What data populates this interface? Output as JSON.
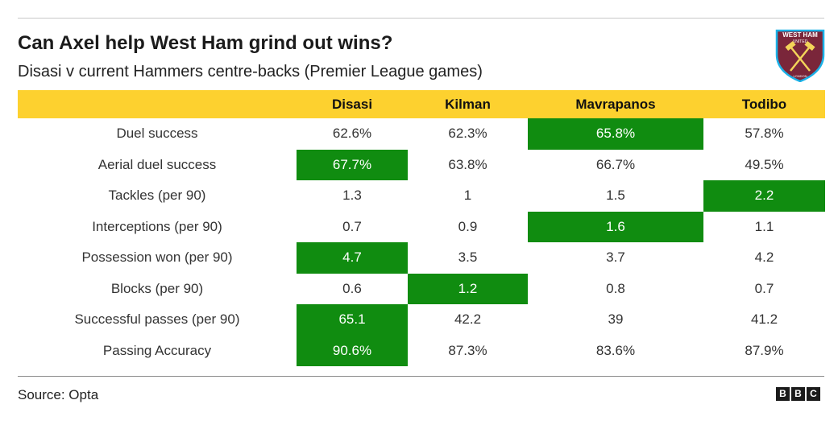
{
  "title": "Can Axel help West Ham grind out wins?",
  "subtitle": "Disasi v current Hammers centre-backs (Premier League games)",
  "crest": {
    "text_top": "WEST HAM",
    "text_mid": "UNITED",
    "text_bottom": "LONDON",
    "colors": {
      "claret": "#7a263a",
      "blue": "#1bb1e7",
      "gold": "#f3d459"
    }
  },
  "colors": {
    "header_bg": "#fdd12f",
    "highlight": "#108c10"
  },
  "chart_data": {
    "type": "table",
    "columns": [
      "",
      "Disasi",
      "Kilman",
      "Mavrapanos",
      "Todibo"
    ],
    "rows": [
      {
        "label": "Duel success",
        "values": [
          "62.6%",
          "62.3%",
          "65.8%",
          "57.8%"
        ],
        "highlight": 2
      },
      {
        "label": "Aerial duel success",
        "values": [
          "67.7%",
          "63.8%",
          "66.7%",
          "49.5%"
        ],
        "highlight": 0
      },
      {
        "label": "Tackles (per 90)",
        "values": [
          "1.3",
          "1",
          "1.5",
          "2.2"
        ],
        "highlight": 3
      },
      {
        "label": "Interceptions (per 90)",
        "values": [
          "0.7",
          "0.9",
          "1.6",
          "1.1"
        ],
        "highlight": 2
      },
      {
        "label": "Possession won (per 90)",
        "values": [
          "4.7",
          "3.5",
          "3.7",
          "4.2"
        ],
        "highlight": 0
      },
      {
        "label": "Blocks (per 90)",
        "values": [
          "0.6",
          "1.2",
          "0.8",
          "0.7"
        ],
        "highlight": 1
      },
      {
        "label": "Successful passes (per 90)",
        "values": [
          "65.1",
          "42.2",
          "39",
          "41.2"
        ],
        "highlight": 0
      },
      {
        "label": "Passing Accuracy",
        "values": [
          "90.6%",
          "87.3%",
          "83.6%",
          "87.9%"
        ],
        "highlight": 0
      }
    ]
  },
  "footer": {
    "source": "Source: Opta",
    "logo_letters": [
      "B",
      "B",
      "C"
    ]
  }
}
